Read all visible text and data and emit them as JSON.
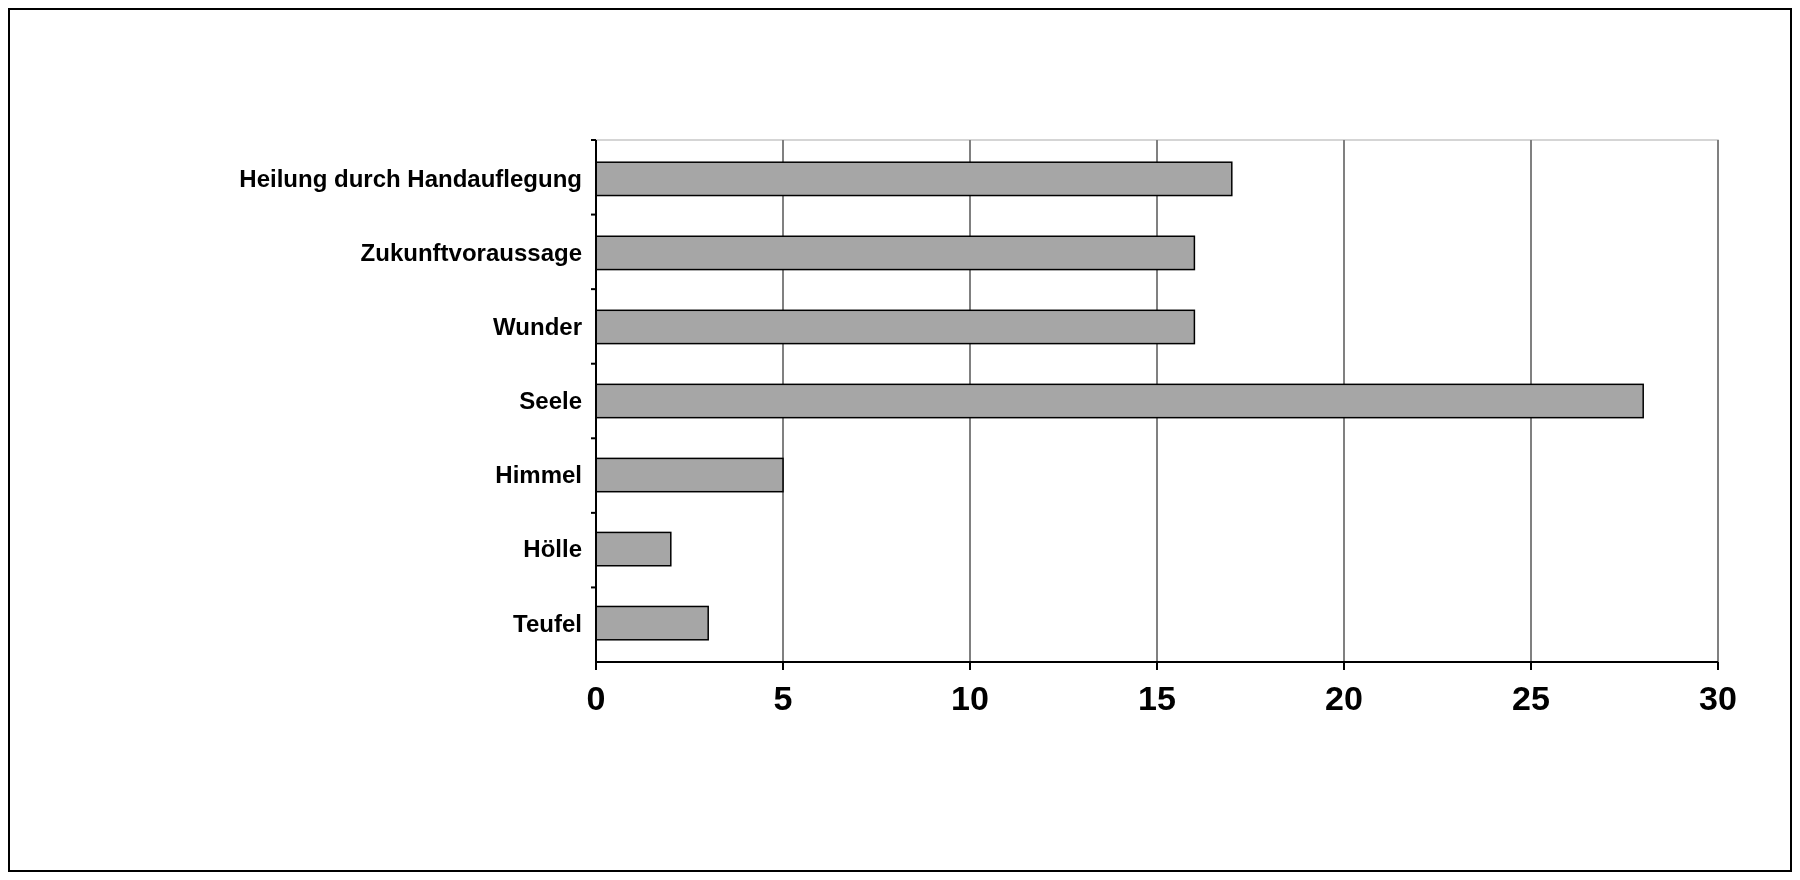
{
  "chart_data": {
    "type": "bar",
    "orientation": "horizontal",
    "categories": [
      "Heilung durch Handauflegung",
      "Zukunftvoraussage",
      "Wunder",
      "Seele",
      "Himmel",
      "Hölle",
      "Teufel"
    ],
    "values": [
      17,
      16,
      16,
      28,
      5,
      2,
      3
    ],
    "color": "#a6a6a6",
    "xlim": [
      0,
      30
    ],
    "xticks": [
      0,
      5,
      10,
      15,
      20,
      25,
      30
    ],
    "grid": "x"
  }
}
